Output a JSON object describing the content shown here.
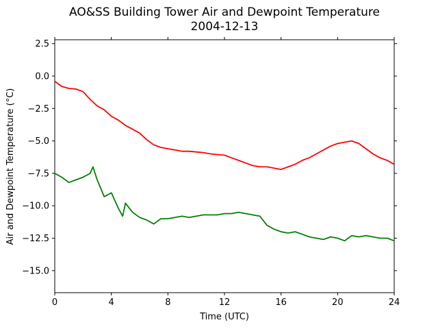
{
  "chart_data": {
    "type": "line",
    "title": "AO&SS Building Tower Air and Dewpoint Temperature",
    "subtitle": "2004-12-13",
    "xlabel": "Time (UTC)",
    "ylabel": "Air and Dewpoint Temperature (°C)",
    "xlim": [
      0,
      24
    ],
    "ylim": [
      -16.7,
      2.8
    ],
    "xticks": [
      0,
      4,
      8,
      12,
      16,
      20,
      24
    ],
    "xtick_labels": [
      "0",
      "4",
      "8",
      "12",
      "16",
      "20",
      "24"
    ],
    "yticks": [
      2.5,
      0.0,
      -2.5,
      -5.0,
      -7.5,
      -10.0,
      -12.5,
      -15.0
    ],
    "ytick_labels": [
      "2.5",
      "0.0",
      "−2.5",
      "−5.0",
      "−7.5",
      "−10.0",
      "−12.5",
      "−15.0"
    ],
    "grid": false,
    "legend": "none",
    "series": [
      {
        "color": "#ff0000",
        "x": [
          0,
          0.5,
          1,
          1.5,
          2,
          2.5,
          3,
          3.5,
          4,
          4.5,
          5,
          5.5,
          6,
          6.5,
          7,
          7.5,
          8,
          8.5,
          9,
          9.5,
          10,
          10.5,
          11,
          11.5,
          12,
          12.5,
          13,
          13.5,
          14,
          14.5,
          15,
          15.5,
          16,
          16.5,
          17,
          17.5,
          18,
          18.5,
          19,
          19.5,
          20,
          20.5,
          21,
          21.5,
          22,
          22.5,
          23,
          23.5,
          24
        ],
        "y": [
          -0.4,
          -0.8,
          -0.95,
          -1.0,
          -1.2,
          -1.8,
          -2.3,
          -2.6,
          -3.1,
          -3.4,
          -3.8,
          -4.1,
          -4.4,
          -4.9,
          -5.3,
          -5.5,
          -5.6,
          -5.7,
          -5.8,
          -5.8,
          -5.85,
          -5.9,
          -6.0,
          -6.05,
          -6.1,
          -6.3,
          -6.5,
          -6.7,
          -6.9,
          -7.0,
          -7.0,
          -7.1,
          -7.2,
          -7.0,
          -6.8,
          -6.5,
          -6.3,
          -6.0,
          -5.7,
          -5.4,
          -5.2,
          -5.1,
          -5.0,
          -5.2,
          -5.6,
          -6.0,
          -6.3,
          -6.5,
          -6.8
        ]
      },
      {
        "color": "#008000",
        "x": [
          0,
          0.5,
          1,
          1.5,
          2,
          2.5,
          2.7,
          3,
          3.5,
          4,
          4.5,
          4.8,
          5,
          5.5,
          6,
          6.5,
          7,
          7.5,
          8,
          8.5,
          9,
          9.5,
          10,
          10.5,
          11,
          11.5,
          12,
          12.5,
          13,
          13.5,
          14,
          14.5,
          15,
          15.5,
          16,
          16.5,
          17,
          17.5,
          18,
          18.5,
          19,
          19.5,
          20,
          20.5,
          21,
          21.5,
          22,
          22.5,
          23,
          23.5,
          24
        ],
        "y": [
          -7.5,
          -7.8,
          -8.2,
          -8.0,
          -7.8,
          -7.5,
          -7.0,
          -8.0,
          -9.3,
          -9.0,
          -10.2,
          -10.8,
          -9.8,
          -10.5,
          -10.9,
          -11.1,
          -11.4,
          -11.0,
          -11.0,
          -10.9,
          -10.8,
          -10.9,
          -10.8,
          -10.7,
          -10.7,
          -10.7,
          -10.6,
          -10.6,
          -10.5,
          -10.6,
          -10.7,
          -10.8,
          -11.5,
          -11.8,
          -12.0,
          -12.1,
          -12.0,
          -12.2,
          -12.4,
          -12.5,
          -12.6,
          -12.4,
          -12.5,
          -12.7,
          -12.3,
          -12.4,
          -12.3,
          -12.4,
          -12.5,
          -12.5,
          -12.7
        ]
      }
    ]
  }
}
